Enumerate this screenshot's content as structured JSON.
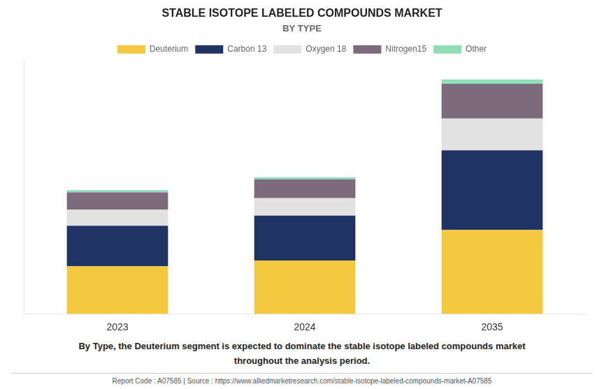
{
  "chart_data": {
    "type": "bar",
    "stacked": true,
    "title": "STABLE ISOTOPE LABELED COMPOUNDS MARKET",
    "subtitle": "BY TYPE",
    "categories": [
      "2023",
      "2024",
      "2035"
    ],
    "series": [
      {
        "name": "Deuterium",
        "color": "#F5C842",
        "values": [
          33,
          37,
          58
        ]
      },
      {
        "name": "Carbon 13",
        "color": "#1F3462",
        "values": [
          28,
          31,
          55
        ]
      },
      {
        "name": "Oxygen 18",
        "color": "#E2E2E2",
        "values": [
          11,
          12,
          22
        ]
      },
      {
        "name": "Nitrogen15",
        "color": "#7D6B7D",
        "values": [
          12,
          13,
          24
        ]
      },
      {
        "name": "Other",
        "color": "#90DDB8",
        "values": [
          1.5,
          1.5,
          3
        ]
      }
    ],
    "ylim": [
      0,
      175
    ],
    "grid": false,
    "legend": "top",
    "tick_labels": "x",
    "annotation": "By Type, the Deuterium segment is expected to dominate the stable isotope labeled compounds market\nthroughout the analysis period.",
    "footer": "Report Code : A07585  |  Source : https://www.alliedmarketresearch.com/stable-isotope-labeled-compounds-market-A07585"
  }
}
